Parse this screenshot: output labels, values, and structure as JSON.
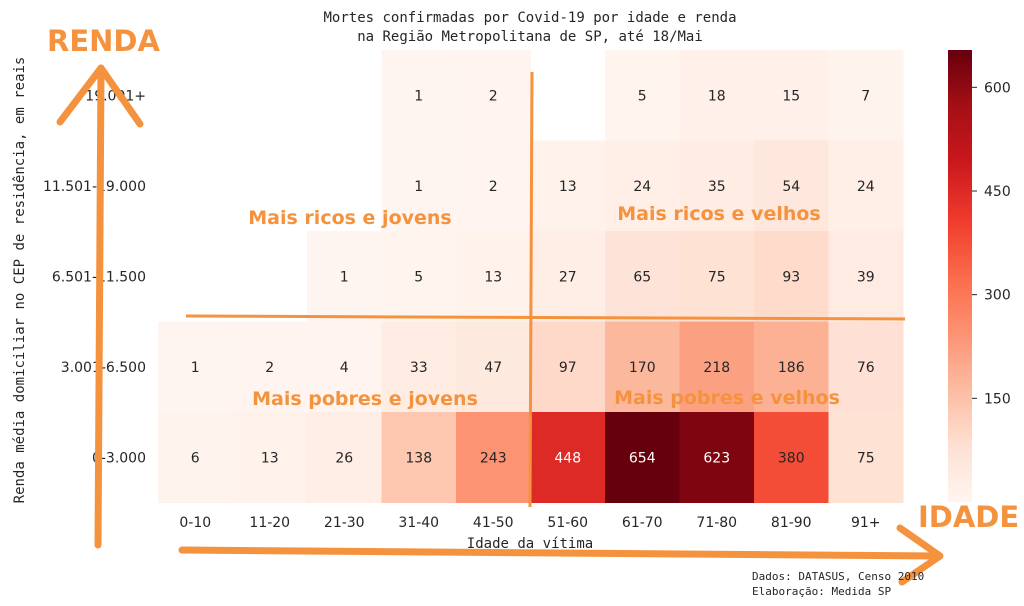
{
  "chart_data": {
    "type": "heatmap",
    "title_lines": [
      "Mortes confirmadas por Covid-19 por idade e renda",
      "na Região Metropolitana de SP, até 18/Mai"
    ],
    "xlabel": "Idade da vítima",
    "ylabel": "Renda média domiciliar no CEP de residência, em reais",
    "x_categories": [
      "0-10",
      "11-20",
      "21-30",
      "31-40",
      "41-50",
      "51-60",
      "61-70",
      "71-80",
      "81-90",
      "91+"
    ],
    "y_categories": [
      "19.001+",
      "11.501-19.000",
      "6.501-11.500",
      "3.001-6.500",
      "0-3.000"
    ],
    "values": [
      [
        null,
        null,
        null,
        1,
        2,
        null,
        5,
        18,
        15,
        7
      ],
      [
        null,
        null,
        null,
        1,
        2,
        13,
        24,
        35,
        54,
        24
      ],
      [
        null,
        null,
        1,
        5,
        13,
        27,
        65,
        75,
        93,
        39
      ],
      [
        1,
        2,
        4,
        33,
        47,
        97,
        170,
        218,
        186,
        76
      ],
      [
        6,
        13,
        26,
        138,
        243,
        448,
        654,
        623,
        380,
        75
      ]
    ],
    "colorbar": {
      "ticks": [
        150,
        300,
        450,
        600
      ],
      "min": 0,
      "max": 654,
      "colormap": "Reds"
    },
    "annotations": {
      "renda": "RENDA",
      "idade": "IDADE",
      "quadrants": [
        "Mais ricos e jovens",
        "Mais ricos e velhos",
        "Mais pobres e jovens",
        "Mais pobres e velhos"
      ]
    },
    "source_lines": [
      "Dados: DATASUS, Censo 2010",
      "Elaboração: Medida SP"
    ]
  },
  "colors": {
    "annotation": "#f5923e",
    "text_dark": "#262626",
    "text_light": "#ffffff"
  }
}
